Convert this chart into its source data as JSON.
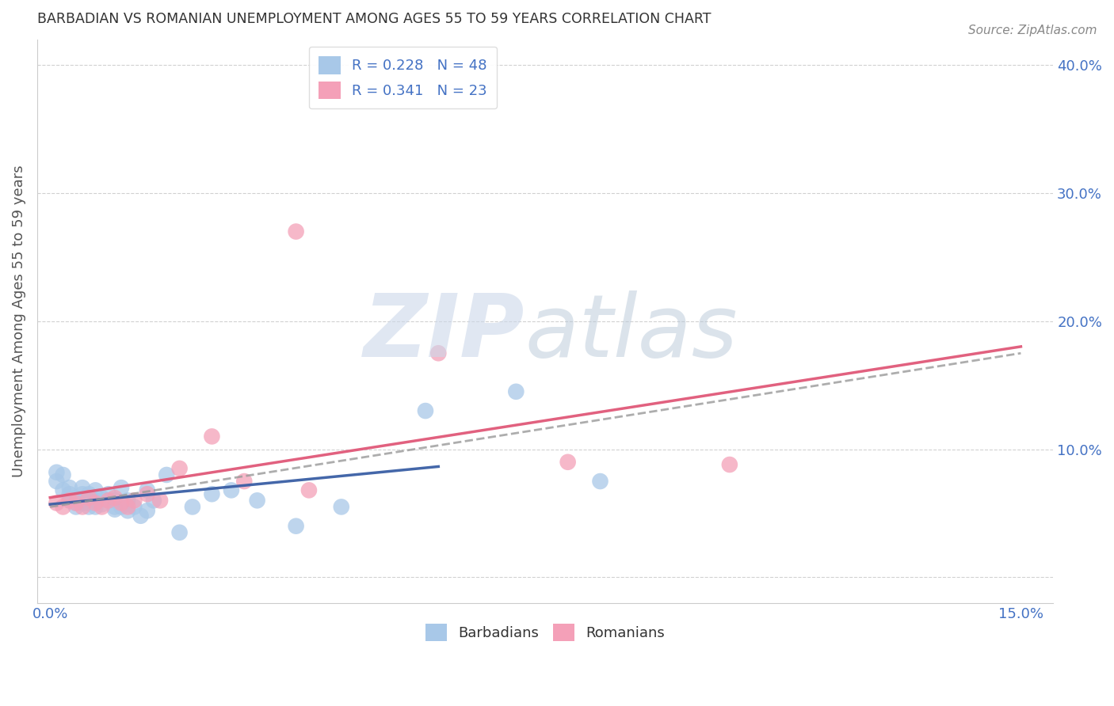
{
  "title": "BARBADIAN VS ROMANIAN UNEMPLOYMENT AMONG AGES 55 TO 59 YEARS CORRELATION CHART",
  "source": "Source: ZipAtlas.com",
  "ylabel": "Unemployment Among Ages 55 to 59 years",
  "R_barbadians": 0.228,
  "N_barbadians": 48,
  "R_romanians": 0.341,
  "N_romanians": 23,
  "color_barbadians": "#a8c8e8",
  "color_romanians": "#f4a0b8",
  "line_color_barbadians": "#3a5fa5",
  "line_color_romanians": "#e05878",
  "line_color_dashed": "#999999",
  "tick_color": "#4472c4",
  "title_color": "#333333",
  "label_color": "#555555",
  "source_color": "#888888",
  "xlim": [
    -0.002,
    0.155
  ],
  "ylim": [
    -0.02,
    0.42
  ],
  "xtick_pos": [
    0.0,
    0.03,
    0.06,
    0.09,
    0.12,
    0.15
  ],
  "xtick_labels": [
    "0.0%",
    "",
    "",
    "",
    "",
    "15.0%"
  ],
  "ytick_pos": [
    0.0,
    0.1,
    0.2,
    0.3,
    0.4
  ],
  "ytick_labels": [
    "",
    "10.0%",
    "20.0%",
    "30.0%",
    "40.0%"
  ],
  "barbadians_x": [
    0.001,
    0.001,
    0.002,
    0.002,
    0.003,
    0.003,
    0.003,
    0.004,
    0.004,
    0.004,
    0.005,
    0.005,
    0.005,
    0.005,
    0.006,
    0.006,
    0.006,
    0.006,
    0.007,
    0.007,
    0.007,
    0.008,
    0.008,
    0.009,
    0.009,
    0.01,
    0.01,
    0.01,
    0.011,
    0.011,
    0.012,
    0.012,
    0.013,
    0.014,
    0.015,
    0.015,
    0.016,
    0.018,
    0.02,
    0.022,
    0.025,
    0.028,
    0.032,
    0.038,
    0.045,
    0.058,
    0.072,
    0.085
  ],
  "barbadians_y": [
    0.075,
    0.082,
    0.068,
    0.08,
    0.06,
    0.065,
    0.07,
    0.058,
    0.062,
    0.055,
    0.06,
    0.065,
    0.058,
    0.07,
    0.055,
    0.06,
    0.058,
    0.065,
    0.055,
    0.06,
    0.068,
    0.057,
    0.062,
    0.06,
    0.065,
    0.055,
    0.06,
    0.053,
    0.055,
    0.07,
    0.052,
    0.06,
    0.055,
    0.048,
    0.052,
    0.068,
    0.06,
    0.08,
    0.035,
    0.055,
    0.065,
    0.068,
    0.06,
    0.04,
    0.055,
    0.13,
    0.145,
    0.075
  ],
  "romanians_x": [
    0.001,
    0.002,
    0.003,
    0.004,
    0.005,
    0.006,
    0.007,
    0.008,
    0.009,
    0.01,
    0.011,
    0.012,
    0.013,
    0.015,
    0.017,
    0.02,
    0.025,
    0.03,
    0.04,
    0.06,
    0.08,
    0.105,
    0.038
  ],
  "romanians_y": [
    0.058,
    0.055,
    0.06,
    0.058,
    0.055,
    0.062,
    0.058,
    0.055,
    0.06,
    0.062,
    0.058,
    0.055,
    0.06,
    0.065,
    0.06,
    0.085,
    0.11,
    0.075,
    0.068,
    0.175,
    0.09,
    0.088,
    0.27
  ],
  "watermark_zip_color": "#ccd8ea",
  "watermark_atlas_color": "#b8c8d8"
}
